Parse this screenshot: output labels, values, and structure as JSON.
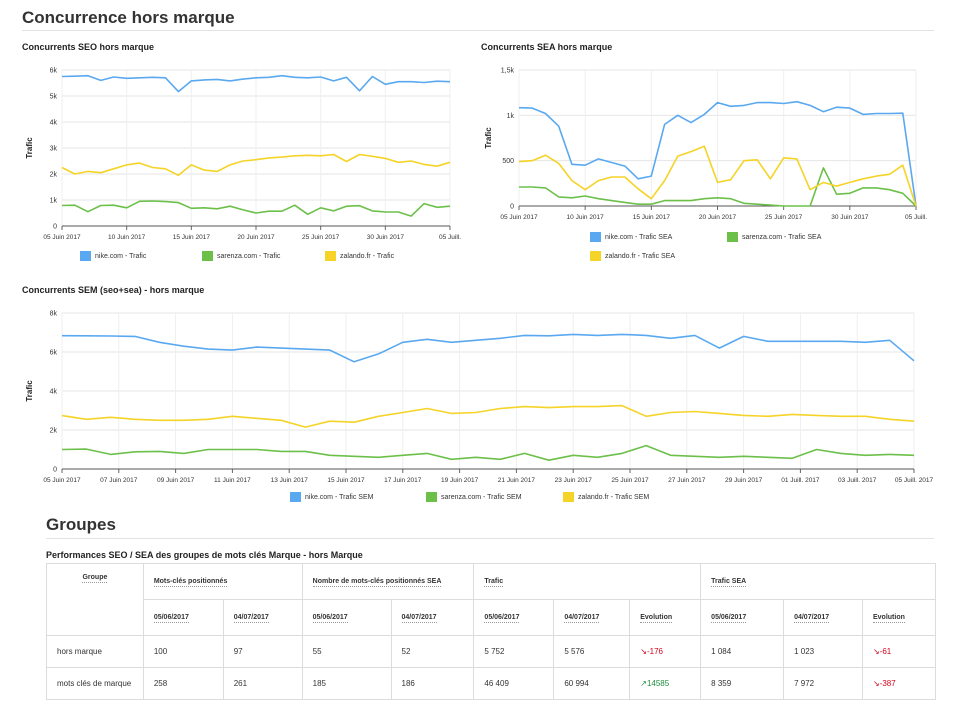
{
  "page_title": "Concurrence hors marque",
  "groupes_title": "Groupes",
  "table_title": "Performances SEO / SEA des groupes de mots clés Marque - hors Marque",
  "colors": {
    "nike": "#5aa9f0",
    "sarenza": "#6cc04a",
    "zalando": "#f5d327"
  },
  "charts": {
    "seo": {
      "title": "Concurrents SEO hors marque",
      "ylabel": "Trafic",
      "legend": [
        "nike.com - Trafic",
        "sarenza.com - Trafic",
        "zalando.fr - Trafic"
      ]
    },
    "sea": {
      "title": "Concurrents SEA hors marque",
      "ylabel": "Trafic",
      "legend": [
        "nike.com - Trafic SEA",
        "sarenza.com - Trafic SEA",
        "zalando.fr - Trafic SEA"
      ]
    },
    "sem": {
      "title": "Concurrents SEM (seo+sea) - hors marque",
      "ylabel": "Trafic",
      "legend": [
        "nike.com - Trafic SEM",
        "sarenza.com - Trafic SEM",
        "zalando.fr - Trafic SEM"
      ]
    }
  },
  "chart_data": [
    {
      "type": "line",
      "title": "Concurrents SEO hors marque",
      "ylabel": "Trafic",
      "ylim": [
        0,
        6000
      ],
      "yticks": [
        "0",
        "1k",
        "2k",
        "3k",
        "4k",
        "5k",
        "6k"
      ],
      "xticks": [
        "05 Juin 2017",
        "10 Juin 2017",
        "15 Juin 2017",
        "20 Juin 2017",
        "25 Juin 2017",
        "30 Juin 2017",
        "05 Juill."
      ],
      "series": [
        {
          "name": "nike.com - Trafic",
          "values": [
            5750,
            5760,
            5780,
            5600,
            5730,
            5680,
            5700,
            5720,
            5700,
            5170,
            5580,
            5620,
            5640,
            5580,
            5650,
            5700,
            5720,
            5780,
            5720,
            5700,
            5730,
            5580,
            5720,
            5200,
            5750,
            5450,
            5550,
            5550,
            5520,
            5570,
            5550
          ]
        },
        {
          "name": "sarenza.com - Trafic",
          "values": [
            790,
            800,
            550,
            790,
            800,
            700,
            950,
            960,
            940,
            900,
            680,
            700,
            660,
            760,
            620,
            500,
            570,
            570,
            800,
            450,
            700,
            580,
            760,
            780,
            580,
            540,
            540,
            380,
            860,
            720,
            760
          ]
        },
        {
          "name": "zalando.fr - Trafic",
          "values": [
            2250,
            2000,
            2100,
            2050,
            2200,
            2350,
            2420,
            2250,
            2200,
            1950,
            2350,
            2150,
            2100,
            2350,
            2500,
            2550,
            2620,
            2650,
            2700,
            2720,
            2700,
            2750,
            2480,
            2750,
            2680,
            2600,
            2450,
            2500,
            2370,
            2300,
            2450
          ]
        }
      ]
    },
    {
      "type": "line",
      "title": "Concurrents SEA hors marque",
      "ylabel": "Trafic",
      "ylim": [
        0,
        1500
      ],
      "yticks": [
        "0",
        "500",
        "1k",
        "1,5k"
      ],
      "xticks": [
        "05 Juin 2017",
        "10 Juin 2017",
        "15 Juin 2017",
        "20 Juin 2017",
        "25 Juin 2017",
        "30 Juin 2017",
        "05 Juill."
      ],
      "series": [
        {
          "name": "nike.com - Trafic SEA",
          "values": [
            1084,
            1080,
            1020,
            880,
            460,
            450,
            520,
            480,
            440,
            300,
            330,
            900,
            1000,
            920,
            1010,
            1140,
            1100,
            1110,
            1140,
            1140,
            1130,
            1150,
            1110,
            1040,
            1090,
            1080,
            1010,
            1020,
            1020,
            1023,
            0
          ]
        },
        {
          "name": "sarenza.com - Trafic SEA",
          "values": [
            210,
            210,
            200,
            100,
            90,
            110,
            80,
            60,
            40,
            20,
            20,
            60,
            60,
            60,
            80,
            90,
            80,
            30,
            20,
            10,
            0,
            0,
            0,
            420,
            130,
            140,
            200,
            200,
            180,
            140,
            0
          ]
        },
        {
          "name": "zalando.fr - Trafic SEA",
          "values": [
            490,
            500,
            560,
            470,
            280,
            180,
            280,
            320,
            320,
            190,
            80,
            280,
            550,
            600,
            660,
            260,
            290,
            500,
            510,
            300,
            530,
            520,
            180,
            260,
            220,
            260,
            300,
            330,
            350,
            450,
            0
          ]
        }
      ]
    },
    {
      "type": "line",
      "title": "Concurrents SEM (seo+sea) - hors marque",
      "ylabel": "Trafic",
      "ylim": [
        0,
        8000
      ],
      "yticks": [
        "0",
        "2k",
        "4k",
        "6k",
        "8k"
      ],
      "xticks": [
        "05 Juin 2017",
        "07 Juin 2017",
        "09 Juin 2017",
        "11 Juin 2017",
        "13 Juin 2017",
        "15 Juin 2017",
        "17 Juin 2017",
        "19 Juin 2017",
        "21 Juin 2017",
        "23 Juin 2017",
        "25 Juin 2017",
        "27 Juin 2017",
        "29 Juin 2017",
        "01 Juill. 2017",
        "03 Juill. 2017",
        "05 Juill. 2017"
      ],
      "series": [
        {
          "name": "nike.com - Trafic SEM",
          "values": [
            6836,
            6830,
            6820,
            6800,
            6500,
            6300,
            6150,
            6100,
            6250,
            6200,
            6150,
            6100,
            5500,
            5900,
            6500,
            6650,
            6500,
            6600,
            6700,
            6850,
            6830,
            6900,
            6850,
            6900,
            6850,
            6700,
            6850,
            6200,
            6800,
            6550,
            6550,
            6550,
            6550,
            6500,
            6600,
            5550
          ]
        },
        {
          "name": "sarenza.com - Trafic SEM",
          "values": [
            1000,
            1020,
            750,
            880,
            900,
            800,
            1000,
            1000,
            1000,
            900,
            900,
            700,
            650,
            600,
            700,
            800,
            500,
            600,
            500,
            800,
            450,
            700,
            600,
            800,
            1200,
            700,
            650,
            600,
            650,
            600,
            550,
            1000,
            800,
            700,
            750,
            700
          ]
        },
        {
          "name": "zalando.fr - Trafic SEM",
          "values": [
            2740,
            2550,
            2650,
            2550,
            2500,
            2500,
            2550,
            2700,
            2600,
            2500,
            2150,
            2450,
            2400,
            2700,
            2900,
            3100,
            2850,
            2900,
            3100,
            3200,
            3150,
            3200,
            3200,
            3250,
            2700,
            2900,
            2950,
            2850,
            2750,
            2700,
            2800,
            2750,
            2700,
            2700,
            2550,
            2450
          ]
        }
      ]
    }
  ],
  "table": {
    "headers": {
      "groupe": "Groupe",
      "mots": "Mots-clés positionnés",
      "nombre": "Nombre de mots-clés positionnés SEA",
      "trafic": "Trafic",
      "trafic_sea": "Trafic SEA",
      "d1": "05/06/2017",
      "d2": "04/07/2017",
      "evolution": "Evolution"
    },
    "rows": [
      {
        "groupe": "hors marque",
        "mots1": "100",
        "mots2": "97",
        "nb1": "55",
        "nb2": "52",
        "tr1": "5 752",
        "tr2": "5 576",
        "trevo": "-176",
        "trevo_dir": "down",
        "sea1": "1 084",
        "sea2": "1 023",
        "seaevo": "-61",
        "seaevo_dir": "down"
      },
      {
        "groupe": "mots clés de marque",
        "mots1": "258",
        "mots2": "261",
        "nb1": "185",
        "nb2": "186",
        "tr1": "46 409",
        "tr2": "60 994",
        "trevo": "14585",
        "trevo_dir": "up",
        "sea1": "8 359",
        "sea2": "7 972",
        "seaevo": "-387",
        "seaevo_dir": "down"
      }
    ]
  }
}
